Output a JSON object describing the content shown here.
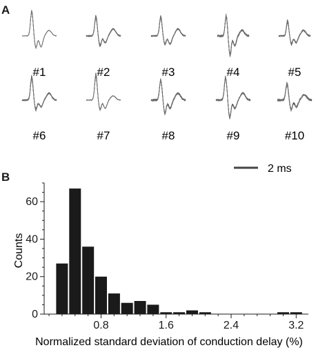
{
  "panels": {
    "a_label": "A",
    "b_label": "B"
  },
  "waveforms": {
    "labels": [
      "#1",
      "#2",
      "#3",
      "#4",
      "#5",
      "#6",
      "#7",
      "#8",
      "#9",
      "#10"
    ],
    "scale_bar_label": "2 ms"
  },
  "chart_data": {
    "type": "bar",
    "title": "",
    "xlabel": "Normalized standard deviation of conduction delay (%)",
    "ylabel": "Counts",
    "xlim": [
      0.1,
      3.35
    ],
    "ylim": [
      0,
      70
    ],
    "xticks": [
      0.8,
      1.6,
      2.4,
      3.2
    ],
    "xtick_labels": [
      "0.8",
      "1.6",
      "2.4",
      "3.2"
    ],
    "yticks": [
      0,
      20,
      40,
      60
    ],
    "ytick_labels": [
      "0",
      "20",
      "40",
      "60"
    ],
    "bin_width": 0.16,
    "bin_centers": [
      0.32,
      0.48,
      0.64,
      0.8,
      0.96,
      1.12,
      1.28,
      1.44,
      1.6,
      1.76,
      1.92,
      2.08,
      2.24,
      2.4,
      2.56,
      2.72,
      2.88,
      3.04,
      3.2
    ],
    "values": [
      27,
      67,
      36,
      20,
      11,
      6,
      7,
      5,
      1,
      1,
      2,
      1,
      0,
      0,
      0,
      0,
      0,
      1,
      1
    ],
    "bar_color": "#1a1a1a",
    "grid": false,
    "legend": "none"
  }
}
